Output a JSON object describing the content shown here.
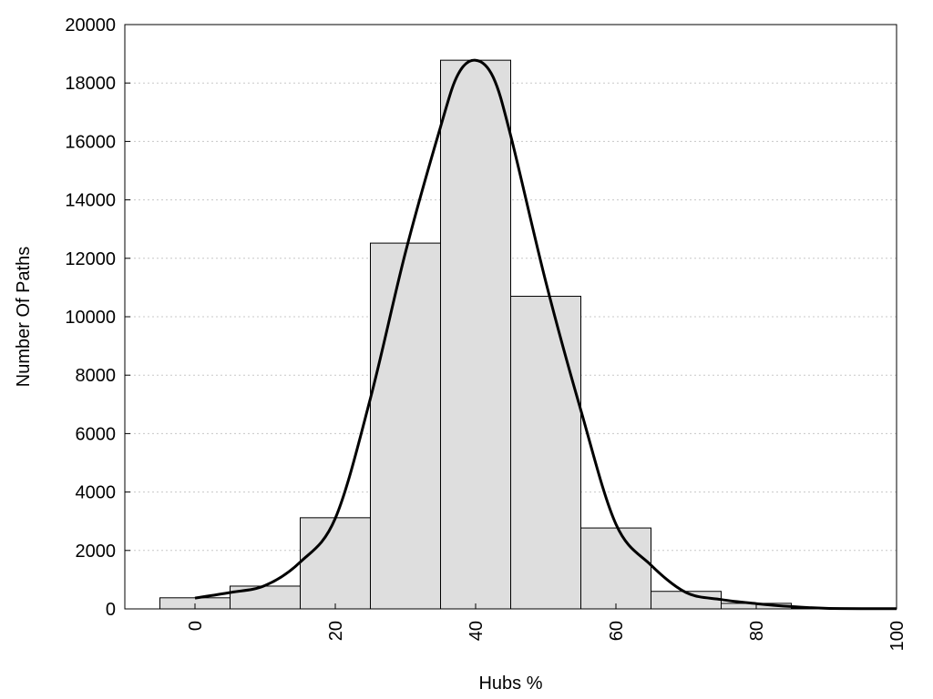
{
  "chart_data": {
    "type": "bar",
    "xlabel": "Hubs %",
    "ylabel": "Number Of Paths",
    "xlim": [
      -10,
      100
    ],
    "ylim": [
      0,
      20000
    ],
    "x_ticks": [
      0,
      20,
      40,
      60,
      80,
      100
    ],
    "y_ticks": [
      0,
      2000,
      4000,
      6000,
      8000,
      10000,
      12000,
      14000,
      16000,
      18000,
      20000
    ],
    "bin_width": 10,
    "grid": "horizontal-dotted",
    "bars": [
      {
        "x": 0,
        "value": 380
      },
      {
        "x": 10,
        "value": 780
      },
      {
        "x": 20,
        "value": 3120
      },
      {
        "x": 30,
        "value": 12520
      },
      {
        "x": 40,
        "value": 18780
      },
      {
        "x": 50,
        "value": 10700
      },
      {
        "x": 60,
        "value": 2770
      },
      {
        "x": 70,
        "value": 600
      },
      {
        "x": 80,
        "value": 190
      },
      {
        "x": 90,
        "value": 30
      },
      {
        "x": 100,
        "value": 10
      }
    ],
    "curve": [
      [
        0,
        370
      ],
      [
        5,
        560
      ],
      [
        10,
        800
      ],
      [
        15,
        1600
      ],
      [
        20,
        3100
      ],
      [
        25,
        7200
      ],
      [
        30,
        12200
      ],
      [
        35,
        16500
      ],
      [
        37.5,
        18300
      ],
      [
        40,
        18780
      ],
      [
        42.5,
        18200
      ],
      [
        45,
        16200
      ],
      [
        50,
        11200
      ],
      [
        55,
        6800
      ],
      [
        60,
        2900
      ],
      [
        65,
        1500
      ],
      [
        70,
        560
      ],
      [
        75,
        320
      ],
      [
        80,
        180
      ],
      [
        85,
        80
      ],
      [
        90,
        20
      ],
      [
        95,
        8
      ],
      [
        100,
        5
      ]
    ]
  }
}
